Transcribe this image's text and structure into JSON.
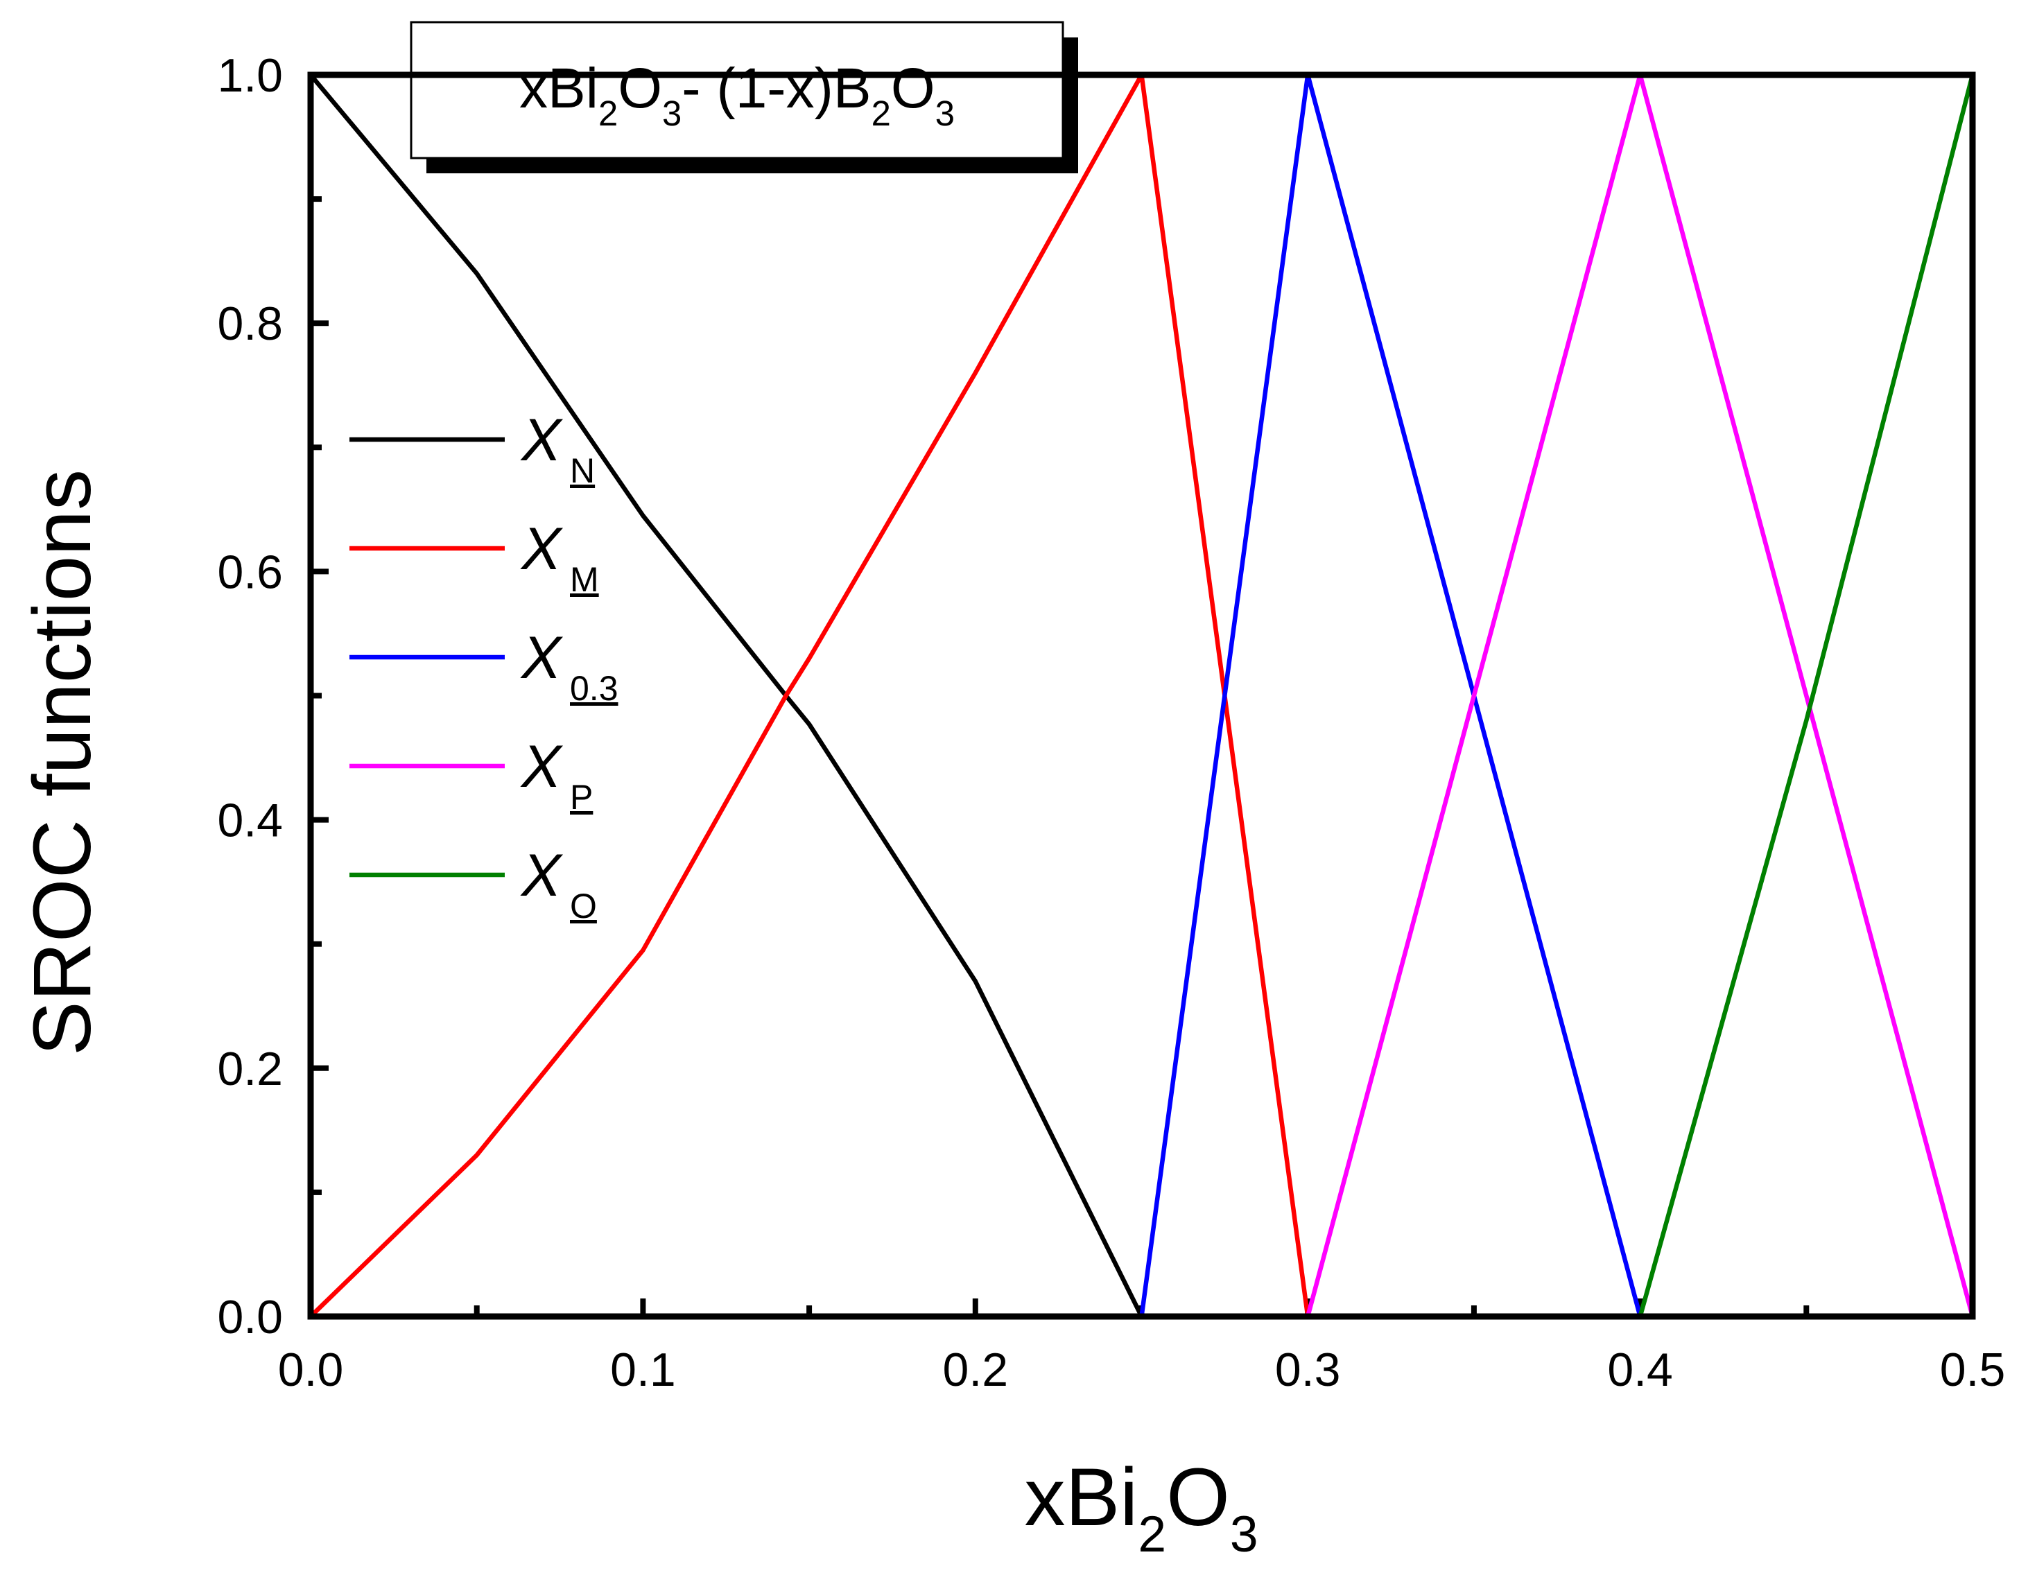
{
  "chart_data": {
    "type": "line",
    "title_parts": [
      {
        "text": "xBi"
      },
      {
        "text": "2",
        "sub": true
      },
      {
        "text": "O"
      },
      {
        "text": "3",
        "sub": true
      },
      {
        "text": "- (1-x)B"
      },
      {
        "text": "2",
        "sub": true
      },
      {
        "text": "O"
      },
      {
        "text": "3",
        "sub": true
      }
    ],
    "xlabel_parts": [
      {
        "text": "xBi"
      },
      {
        "text": "2",
        "sub": true
      },
      {
        "text": "O"
      },
      {
        "text": "3",
        "sub": true
      }
    ],
    "ylabel": "SROC functions",
    "xlim": [
      0,
      0.5
    ],
    "ylim": [
      0,
      1
    ],
    "xticks": [
      {
        "value": 0,
        "label": "0.0"
      },
      0.1,
      0.2,
      0.3,
      0.4,
      0.5
    ],
    "yticks": [
      {
        "value": 0,
        "label": "0.0"
      },
      0.2,
      0.4,
      0.6,
      0.8,
      {
        "value": 1,
        "label": "1.0"
      }
    ],
    "xminor": [
      0.05,
      0.15,
      0.25,
      0.35,
      0.45
    ],
    "yminor": [
      0.1,
      0.3,
      0.5,
      0.7,
      0.9
    ],
    "series": [
      {
        "name": "X",
        "subscript": "N",
        "color": "#000000",
        "x": [
          0,
          0.05,
          0.1,
          0.143,
          0.15,
          0.2,
          0.25
        ],
        "values": [
          1,
          0.84,
          0.645,
          0.5,
          0.477,
          0.27,
          0
        ]
      },
      {
        "name": "X",
        "subscript": "M",
        "color": "#ff0000",
        "x": [
          0,
          0.05,
          0.1,
          0.143,
          0.15,
          0.2,
          0.25,
          0.3,
          0.4
        ],
        "values": [
          0,
          0.13,
          0.295,
          0.5,
          0.53,
          0.76,
          1,
          0,
          0
        ]
      },
      {
        "name": "X",
        "subscript": "0.3",
        "color": "#0000ff",
        "x": [
          0.25,
          0.3,
          0.4
        ],
        "values": [
          0,
          1,
          0
        ]
      },
      {
        "name": "X",
        "subscript": "P",
        "color": "#ff00ff",
        "x": [
          0.25,
          0.3,
          0.4,
          0.5
        ],
        "values": [
          0,
          0,
          1,
          0
        ]
      },
      {
        "name": "X",
        "subscript": "O",
        "color": "#008000",
        "x": [
          0.4,
          0.45,
          0.5
        ],
        "values": [
          0,
          0.48,
          1
        ]
      }
    ]
  }
}
